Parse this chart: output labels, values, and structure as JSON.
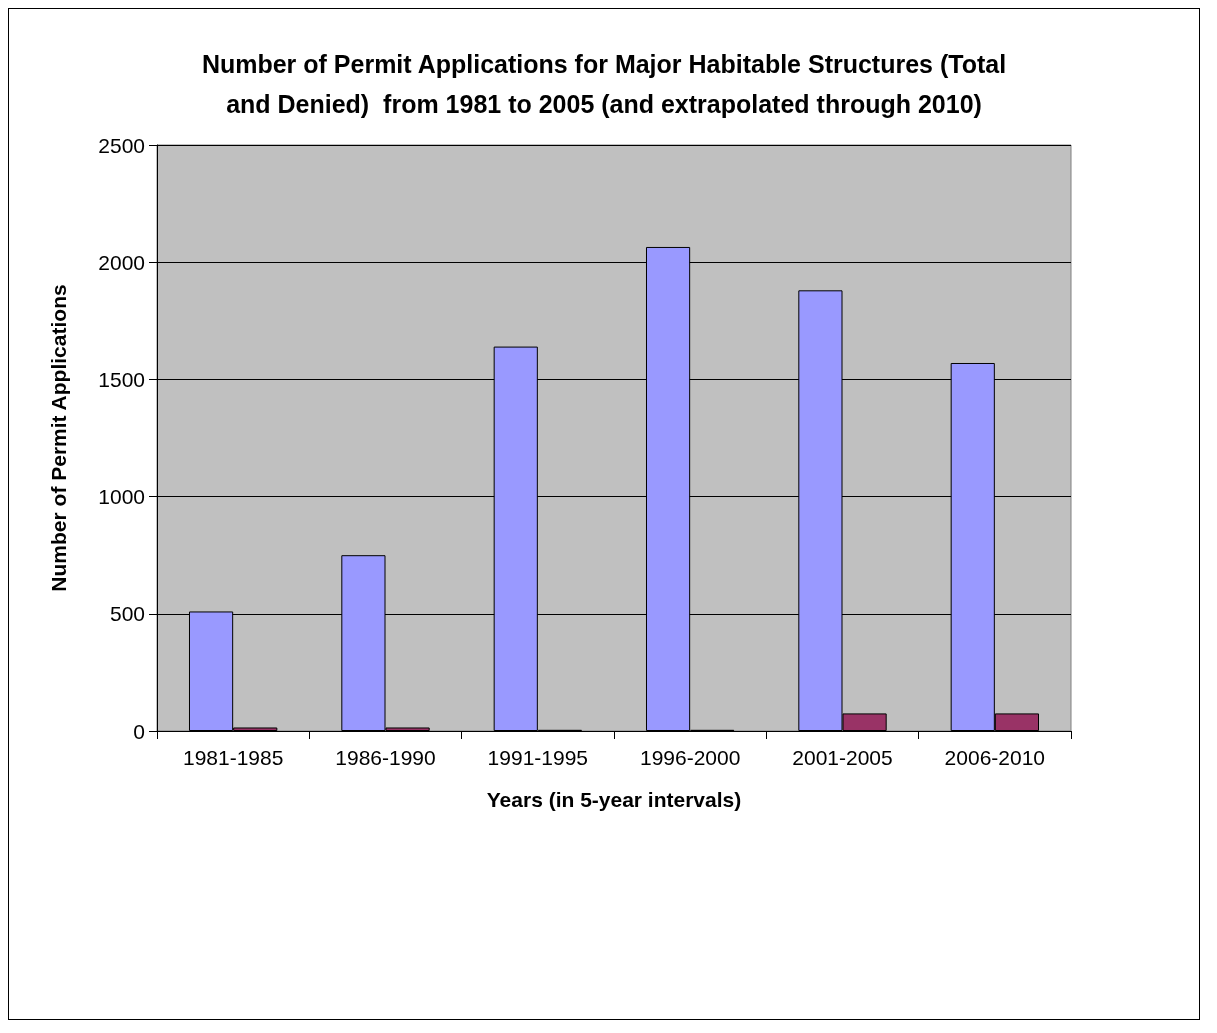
{
  "chart_data": {
    "type": "bar",
    "title": "Number of Permit Applications for Major Habitable Structures (Total\nand Denied)  from 1981 to 2005 (and extrapolated through 2010)",
    "xlabel": "Years (in 5-year intervals)",
    "ylabel": "Number of Permit Applications",
    "categories": [
      "1981-1985",
      "1986-1990",
      "1991-1995",
      "1996-2000",
      "2001-2005",
      "2006-2010"
    ],
    "series": [
      {
        "color": "#9999ff",
        "values": [
          510,
          750,
          1640,
          2065,
          1880,
          1570
        ]
      },
      {
        "color": "#993366",
        "values": [
          15,
          15,
          5,
          5,
          75,
          75
        ]
      }
    ],
    "ylim": [
      0,
      2500
    ],
    "yticks": [
      0,
      500,
      1000,
      1500,
      2000,
      2500
    ],
    "grid": "y"
  }
}
